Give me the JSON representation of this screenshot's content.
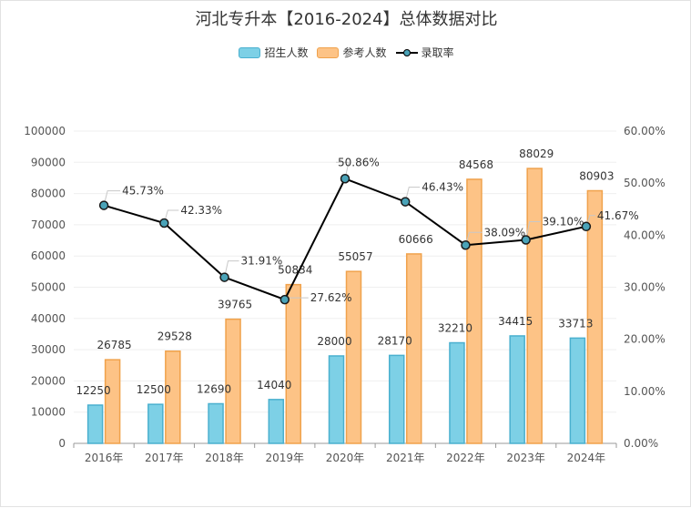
{
  "chart_data": {
    "type": "bar",
    "title": "河北专升本【2016-2024】总体数据对比",
    "categories": [
      "2016年",
      "2017年",
      "2018年",
      "2019年",
      "2020年",
      "2021年",
      "2022年",
      "2023年",
      "2024年"
    ],
    "series": [
      {
        "name": "招生人数",
        "type": "bar",
        "axis": "left",
        "color": "#7dd0e6",
        "border": "#4ab0cf",
        "values": [
          12250,
          12500,
          12690,
          14040,
          28000,
          28170,
          32210,
          34415,
          33713
        ]
      },
      {
        "name": "参考人数",
        "type": "bar",
        "axis": "left",
        "color": "#fdc386",
        "border": "#f0a24c",
        "values": [
          26785,
          29528,
          39765,
          50834,
          55057,
          60666,
          84568,
          88029,
          80903
        ]
      },
      {
        "name": "录取率",
        "type": "line",
        "axis": "right",
        "color": "#000000",
        "marker": "#4aa3b8",
        "values": [
          45.73,
          42.33,
          31.91,
          27.62,
          50.86,
          46.43,
          38.09,
          39.1,
          41.67
        ],
        "labels": [
          "45.73%",
          "42.33%",
          "31.91%",
          "27.62%",
          "50.86%",
          "46.43%",
          "38.09%",
          "39.10%",
          "41.67%"
        ]
      }
    ],
    "y_left": {
      "min": 0,
      "max": 100000,
      "ticks": [
        "0",
        "10000",
        "20000",
        "30000",
        "40000",
        "50000",
        "60000",
        "70000",
        "80000",
        "90000",
        "100000"
      ]
    },
    "y_right": {
      "min": 0,
      "max": 60,
      "ticks": [
        "0.00%",
        "10.00%",
        "20.00%",
        "30.00%",
        "40.00%",
        "50.00%",
        "60.00%"
      ]
    },
    "grid": true,
    "legend_position": "top-center"
  }
}
